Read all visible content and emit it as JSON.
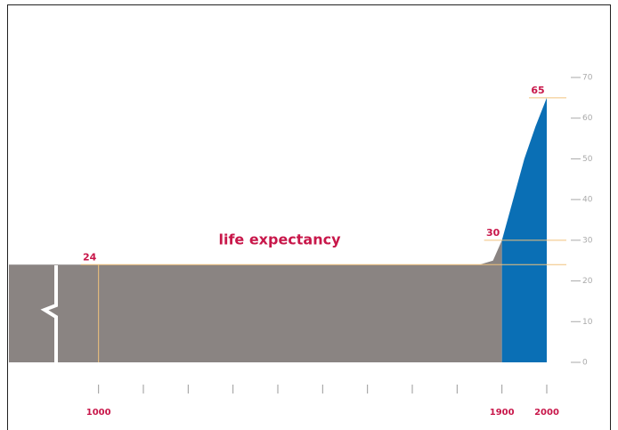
{
  "chart_data": {
    "type": "area",
    "series": [
      {
        "color": "#8a8482",
        "x": [
          800,
          1000,
          1850,
          1880,
          1900
        ],
        "values": [
          24,
          24,
          24,
          25,
          30
        ]
      },
      {
        "color": "#0a6fb5",
        "x": [
          1900,
          1925,
          1950,
          1975,
          2000
        ],
        "values": [
          30,
          40,
          50,
          58,
          65
        ]
      }
    ],
    "xlim": [
      800,
      2000
    ],
    "xticks": [
      1000,
      1900,
      2000
    ],
    "minor_xticks": [
      1100,
      1200,
      1300,
      1400,
      1500,
      1600,
      1700,
      1800
    ],
    "ylim": [
      0,
      70
    ],
    "yticks": [
      0,
      10,
      20,
      30,
      40,
      50,
      60,
      70
    ],
    "annotations": [
      {
        "text": "24",
        "x": 1000,
        "y": 24
      },
      {
        "text": "30",
        "x": 1900,
        "y": 30
      },
      {
        "text": "65",
        "x": 2000,
        "y": 65
      }
    ],
    "vlines": [
      1000
    ],
    "label": "life expectancy",
    "accent_color": "#c8174a",
    "guide_color": "#f0c27c"
  }
}
